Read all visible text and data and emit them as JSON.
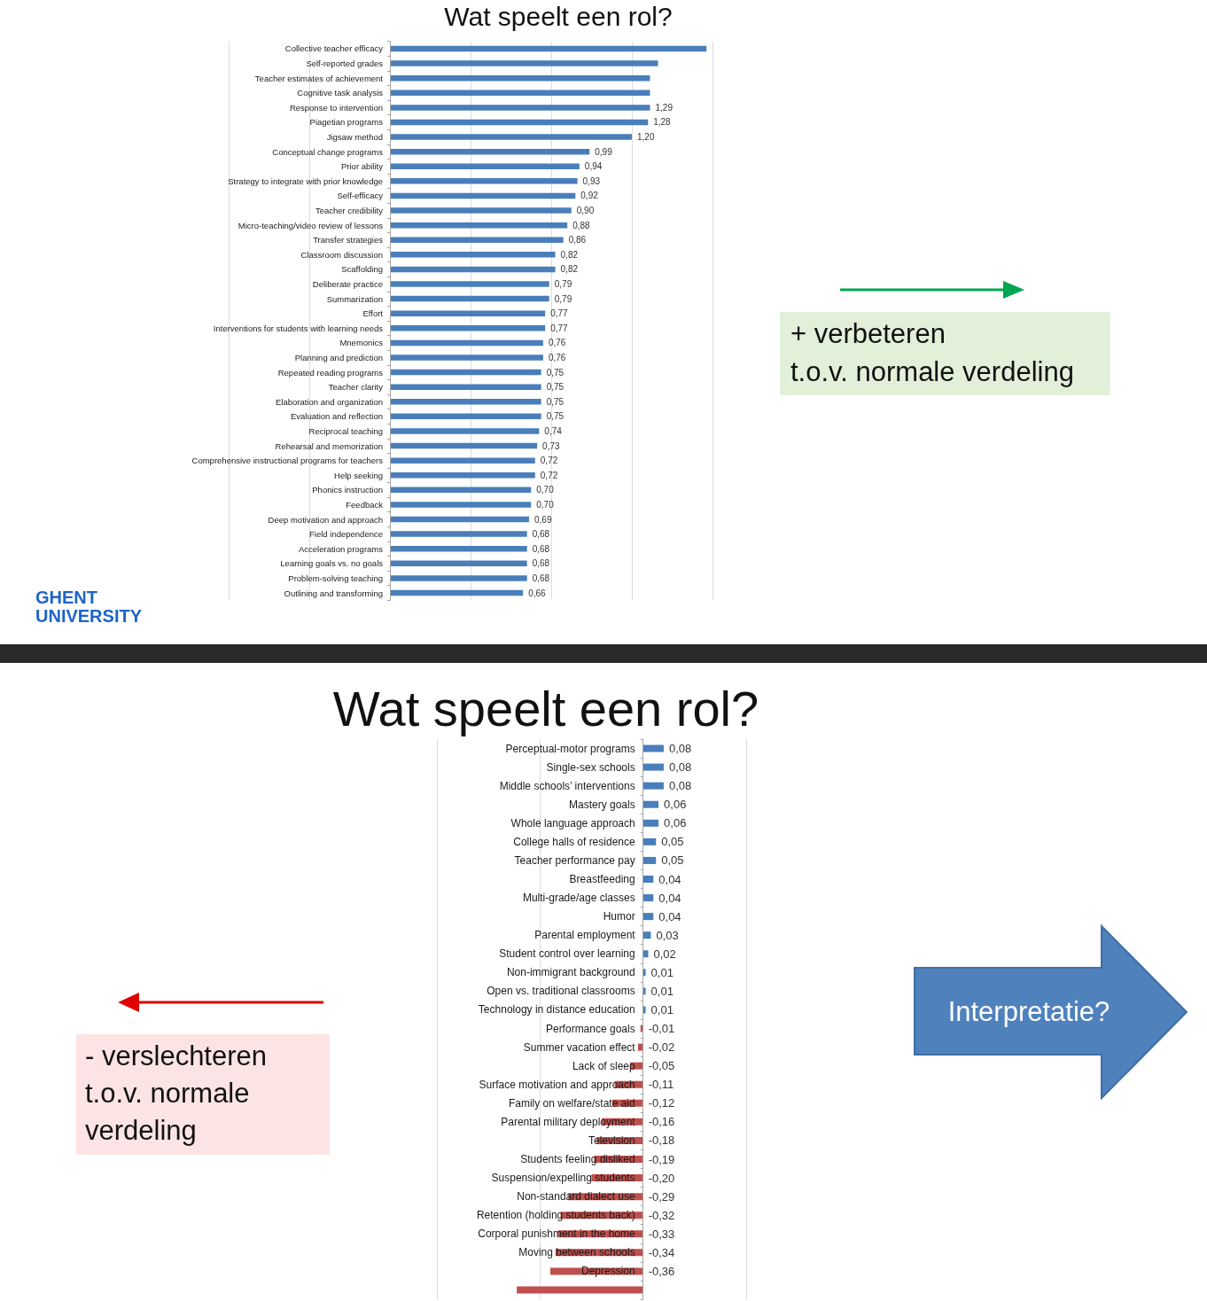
{
  "chart_data": [
    {
      "type": "bar",
      "orientation": "horizontal",
      "title": "Wat speelt een rol?",
      "categories": [
        "Collective teacher efficacy",
        "Self-reported grades",
        "Teacher estimates of achievement",
        "Cognitive task analysis",
        "Response to intervention",
        "Piagetian programs",
        "Jigsaw method",
        "Conceptual change programs",
        "Prior ability",
        "Strategy to integrate with prior knowledge",
        "Self-efficacy",
        "Teacher credibility",
        "Micro-teaching/video review of lessons",
        "Transfer strategies",
        "Classroom discussion",
        "Scaffolding",
        "Deliberate practice",
        "Summarization",
        "Effort",
        "Interventions for students with learning needs",
        "Mnemonics",
        "Planning and prediction",
        "Repeated reading programs",
        "Teacher clarity",
        "Elaboration and organization",
        "Evaluation and reflection",
        "Reciprocal teaching",
        "Rehearsal and memorization",
        "Comprehensive instructional programs for teachers",
        "Help seeking",
        "Phonics instruction",
        "Feedback",
        "Deep motivation and approach",
        "Field independence",
        "Acceleration programs",
        "Learning goals vs. no goals",
        "Problem-solving teaching",
        "Outlining and transforming"
      ],
      "values": [
        1.57,
        1.33,
        1.29,
        1.29,
        1.29,
        1.28,
        1.2,
        0.99,
        0.94,
        0.93,
        0.92,
        0.9,
        0.88,
        0.86,
        0.82,
        0.82,
        0.79,
        0.79,
        0.77,
        0.77,
        0.76,
        0.76,
        0.75,
        0.75,
        0.75,
        0.75,
        0.74,
        0.73,
        0.72,
        0.72,
        0.7,
        0.7,
        0.69,
        0.68,
        0.68,
        0.68,
        0.68,
        0.66
      ],
      "value_labels": [
        null,
        null,
        null,
        null,
        "1,29",
        "1,28",
        "1,20",
        "0,99",
        "0,94",
        "0,93",
        "0,92",
        "0,90",
        "0,88",
        "0,86",
        "0,82",
        "0,82",
        "0,79",
        "0,79",
        "0,77",
        "0,77",
        "0,76",
        "0,76",
        "0,75",
        "0,75",
        "0,75",
        "0,75",
        "0,74",
        "0,73",
        "0,72",
        "0,72",
        "0,70",
        "0,70",
        "0,69",
        "0,68",
        "0,68",
        "0,68",
        "0,68",
        "0,66"
      ],
      "color": "#4a7ebb",
      "xlim": [
        -0.8,
        1.6
      ],
      "xticks": [
        {
          "value": -0.8,
          "label": null
        },
        {
          "value": -0.4,
          "label": null
        },
        {
          "value": 0,
          "label": null
        },
        {
          "value": 0.4,
          "label": null
        },
        {
          "value": 0.8,
          "label": null
        },
        {
          "value": 1.2,
          "label": null
        },
        {
          "value": 1.6,
          "label": null
        }
      ],
      "grid": "x",
      "tick_labels": "y",
      "annotations": [
        "+ verbeteren\nt.o.v. normale verdeling",
        "GHENT\nUNIVERSITY"
      ]
    },
    {
      "type": "bar",
      "orientation": "horizontal",
      "title": "Wat speelt een rol?",
      "categories": [
        "Perceptual-motor programs",
        "Single-sex schools",
        "Middle schools’ interventions",
        "Mastery goals",
        "Whole language approach",
        "College halls of residence",
        "Teacher performance pay",
        "Breastfeeding",
        "Multi-grade/age classes",
        "Humor",
        "Parental employment",
        "Student control over learning",
        "Non-immigrant background",
        "Open vs. traditional classrooms",
        "Technology in distance education",
        "Performance goals",
        "Summer vacation effect",
        "Lack of sleep",
        "Surface motivation and approach",
        "Family on welfare/state aid",
        "Parental military deployment",
        "Television",
        "Students feeling disliked",
        "Suspension/expelling students",
        "Non-standard dialect use",
        "Retention (holding students back)",
        "Corporal punishment in the home",
        "Moving between schools",
        "Depression",
        null
      ],
      "values": [
        0.08,
        0.08,
        0.08,
        0.06,
        0.06,
        0.05,
        0.05,
        0.04,
        0.04,
        0.04,
        0.03,
        0.02,
        0.01,
        0.01,
        0.01,
        -0.01,
        -0.02,
        -0.05,
        -0.11,
        -0.12,
        -0.16,
        -0.18,
        -0.19,
        -0.2,
        -0.29,
        -0.32,
        -0.33,
        -0.34,
        -0.36,
        -0.49
      ],
      "value_labels": [
        "0,08",
        "0,08",
        "0,08",
        "0,06",
        "0,06",
        "0,05",
        "0,05",
        "0,04",
        "0,04",
        "0,04",
        "0,03",
        "0,02",
        "0,01",
        "0,01",
        "0,01",
        "-0,01",
        "-0,02",
        "-0,05",
        "-0,11",
        "-0,12",
        "-0,16",
        "-0,18",
        "-0,19",
        "-0,20",
        "-0,29",
        "-0,32",
        "-0,33",
        "-0,34",
        "-0,36",
        null
      ],
      "colors": [
        "#4a7ebb",
        "#4a7ebb",
        "#4a7ebb",
        "#4a7ebb",
        "#4a7ebb",
        "#4a7ebb",
        "#4a7ebb",
        "#4a7ebb",
        "#4a7ebb",
        "#4a7ebb",
        "#4a7ebb",
        "#4a7ebb",
        "#4a7ebb",
        "#4a7ebb",
        "#4a7ebb",
        "#c0504d",
        "#c0504d",
        "#c0504d",
        "#c0504d",
        "#c0504d",
        "#c0504d",
        "#c0504d",
        "#c0504d",
        "#c0504d",
        "#c0504d",
        "#c0504d",
        "#c0504d",
        "#c0504d",
        "#c0504d",
        "#c0504d"
      ],
      "xlim": [
        -0.8,
        0.4
      ],
      "xticks": [
        {
          "value": -0.8,
          "label": null
        },
        {
          "value": -0.4,
          "label": null
        },
        {
          "value": 0,
          "label": null
        },
        {
          "value": 0.4,
          "label": null
        }
      ],
      "grid": "x",
      "tick_labels": "y",
      "annotations": [
        "- verslechteren\nt.o.v. normale\nverdeling",
        "Interpretatie?"
      ]
    }
  ]
}
